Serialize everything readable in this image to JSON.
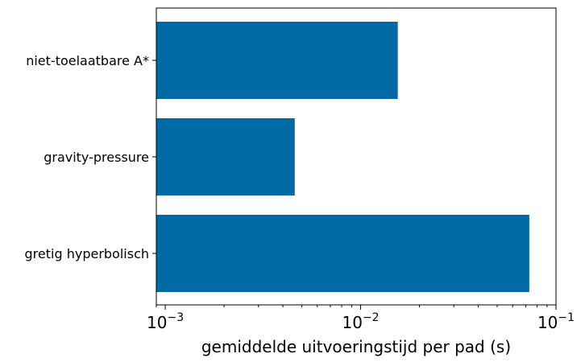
{
  "chart_data": {
    "type": "bar",
    "orientation": "horizontal",
    "categories": [
      "niet-toelaatbare A*",
      "gravity-pressure",
      "gretig hyperbolisch"
    ],
    "values": [
      0.0155,
      0.0046,
      0.073
    ],
    "xlabel": "gemiddelde uitvoeringstijd per pad (s)",
    "ylabel": "",
    "x_scale": "log",
    "xlim": [
      0.0009,
      0.1
    ],
    "x_ticks": [
      {
        "base": "10",
        "exp": "−3"
      },
      {
        "base": "10",
        "exp": "−2"
      },
      {
        "base": "10",
        "exp": "−1"
      }
    ],
    "x_tick_values": [
      0.001,
      0.01,
      0.1
    ],
    "grid": false,
    "bar_color": "#0069a6"
  }
}
